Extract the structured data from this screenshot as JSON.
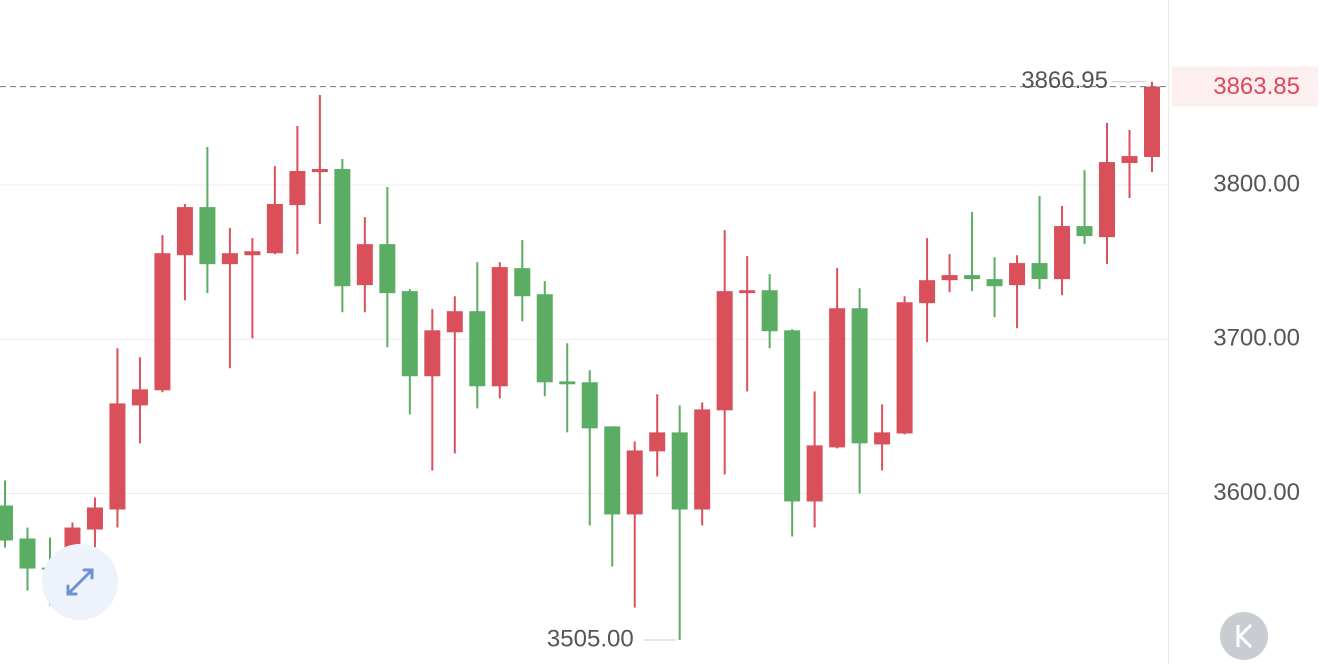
{
  "chart_data": {
    "type": "candlestick",
    "categories": [
      null,
      null,
      null,
      null,
      null,
      null,
      null,
      null,
      null,
      null,
      null,
      null,
      null,
      null,
      null,
      null,
      null,
      null,
      null,
      null,
      null,
      null,
      null,
      null,
      null,
      null,
      null,
      null,
      null,
      null,
      null,
      null,
      null,
      null,
      null,
      null,
      null,
      null,
      null,
      null,
      null,
      null,
      null,
      null,
      null,
      null,
      null,
      null,
      null,
      null,
      null,
      null
    ],
    "open": [
      3592.2,
      3570.8,
      3551.9,
      3551.3,
      3576.6,
      3589.6,
      3657.1,
      3666.9,
      3754.5,
      3785.7,
      3748.7,
      3754.5,
      3755.8,
      3787.0,
      3808.4,
      3810.4,
      3735.1,
      3761.7,
      3731.2,
      3676.0,
      3704.5,
      3718.2,
      3669.5,
      3746.1,
      3729.2,
      3672.7,
      3672.1,
      3643.5,
      3586.4,
      3627.3,
      3639.6,
      3589.6,
      3653.9,
      3729.9,
      3731.8,
      3705.8,
      3594.8,
      3629.9,
      3720.1,
      3631.8,
      3638.9,
      3723.4,
      3738.3,
      3741.6,
      3739.0,
      3735.1,
      3749.4,
      3739.0,
      3773.4,
      3766.2,
      3814.3,
      3818.2
    ],
    "high": [
      3608.4,
      3577.9,
      3571.4,
      3581.2,
      3597.4,
      3694.2,
      3688.3,
      3767.5,
      3787.7,
      3824.7,
      3772.1,
      3765.6,
      3812.3,
      3838.3,
      3858.4,
      3816.9,
      3779.2,
      3798.7,
      3732.5,
      3719.5,
      3727.9,
      3750.0,
      3750.0,
      3764.3,
      3737.7,
      3697.4,
      3679.9,
      3643.5,
      3633.8,
      3664.3,
      3657.1,
      3659.1,
      3770.8,
      3753.9,
      3742.2,
      3706.5,
      3666.2,
      3746.1,
      3733.1,
      3657.8,
      3727.9,
      3765.6,
      3755.2,
      3782.5,
      3753.2,
      3754.5,
      3792.9,
      3786.4,
      3809.7,
      3840.3,
      3835.7,
      3866.95
    ],
    "low": [
      3564.9,
      3537.0,
      3527.3,
      3531.8,
      3539.0,
      3577.9,
      3632.5,
      3665.6,
      3725.3,
      3729.9,
      3681.2,
      3700.6,
      3755.2,
      3755.2,
      3774.7,
      3717.5,
      3717.5,
      3694.8,
      3651.3,
      3614.9,
      3626.0,
      3655.2,
      3661.7,
      3711.7,
      3663.0,
      3639.6,
      3579.2,
      3552.6,
      3526.0,
      3611.0,
      3505.0,
      3579.2,
      3612.3,
      3666.2,
      3694.2,
      3572.1,
      3577.9,
      3629.2,
      3600.0,
      3614.9,
      3638.3,
      3698.1,
      3730.5,
      3731.2,
      3714.3,
      3707.1,
      3732.5,
      3728.6,
      3761.7,
      3748.7,
      3791.6,
      3808.4
    ],
    "close": [
      3569.5,
      3551.3,
      3550.6,
      3577.9,
      3590.9,
      3658.4,
      3667.5,
      3755.8,
      3785.7,
      3748.7,
      3755.8,
      3757.1,
      3787.7,
      3809.1,
      3810.4,
      3734.4,
      3761.7,
      3729.9,
      3676.0,
      3705.8,
      3718.2,
      3669.5,
      3746.8,
      3727.9,
      3672.1,
      3670.8,
      3642.2,
      3586.4,
      3627.9,
      3639.6,
      3589.6,
      3654.5,
      3731.2,
      3731.8,
      3705.2,
      3594.8,
      3631.2,
      3720.1,
      3632.5,
      3639.6,
      3724.0,
      3738.3,
      3741.6,
      3739.0,
      3734.4,
      3749.4,
      3739.0,
      3773.4,
      3766.9,
      3814.9,
      3818.8,
      3863.85
    ],
    "up_color": "#d9505a",
    "down_color": "#5aad62",
    "ylim": [
      3492,
      3920
    ],
    "yticks": [
      {
        "value": 3600,
        "label": "3600.00"
      },
      {
        "value": 3700,
        "label": "3700.00"
      },
      {
        "value": 3800,
        "label": "3800.00"
      }
    ],
    "grid": true,
    "max_marker": {
      "value": 3866.95,
      "label": "3866.95"
    },
    "min_marker": {
      "value": 3505,
      "label": "3505.00"
    },
    "last_price": {
      "value": 3863.85,
      "label": "3863.85"
    }
  }
}
